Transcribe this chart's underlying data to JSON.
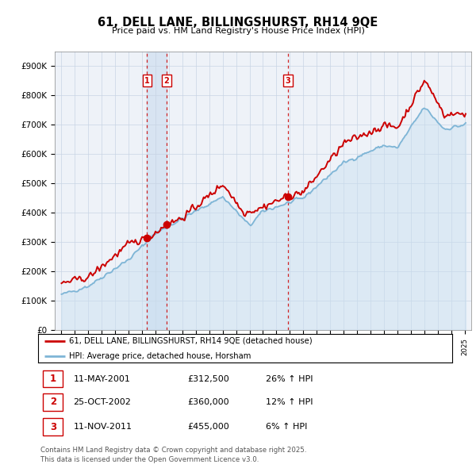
{
  "title": "61, DELL LANE, BILLINGSHURST, RH14 9QE",
  "subtitle": "Price paid vs. HM Land Registry's House Price Index (HPI)",
  "legend_line1": "61, DELL LANE, BILLINGSHURST, RH14 9QE (detached house)",
  "legend_line2": "HPI: Average price, detached house, Horsham",
  "sale_points": [
    {
      "label": "1",
      "date": "11-MAY-2001",
      "price": 312500,
      "x_year": 2001.37
    },
    {
      "label": "2",
      "date": "25-OCT-2002",
      "price": 360000,
      "x_year": 2002.82
    },
    {
      "label": "3",
      "date": "11-NOV-2011",
      "price": 455000,
      "x_year": 2011.87
    }
  ],
  "table_rows": [
    {
      "num": "1",
      "date": "11-MAY-2001",
      "price": "£312,500",
      "change": "26% ↑ HPI"
    },
    {
      "num": "2",
      "date": "25-OCT-2002",
      "price": "£360,000",
      "change": "12% ↑ HPI"
    },
    {
      "num": "3",
      "date": "11-NOV-2011",
      "price": "£455,000",
      "change": "6% ↑ HPI"
    }
  ],
  "footer": "Contains HM Land Registry data © Crown copyright and database right 2025.\nThis data is licensed under the Open Government Licence v3.0.",
  "hpi_color": "#7eb5d6",
  "hpi_fill_color": "#c8dff0",
  "price_color": "#cc0000",
  "sale_marker_color": "#cc0000",
  "sale_vline_color": "#cc0000",
  "highlight_fill": "#ddeeff",
  "background_color": "#ffffff",
  "plot_bg_color": "#eef2f8",
  "grid_color": "#c8d4e4",
  "ylim": [
    0,
    950000
  ],
  "yticks": [
    0,
    100000,
    200000,
    300000,
    400000,
    500000,
    600000,
    700000,
    800000,
    900000
  ],
  "xlim_start": 1994.5,
  "xlim_end": 2025.5
}
